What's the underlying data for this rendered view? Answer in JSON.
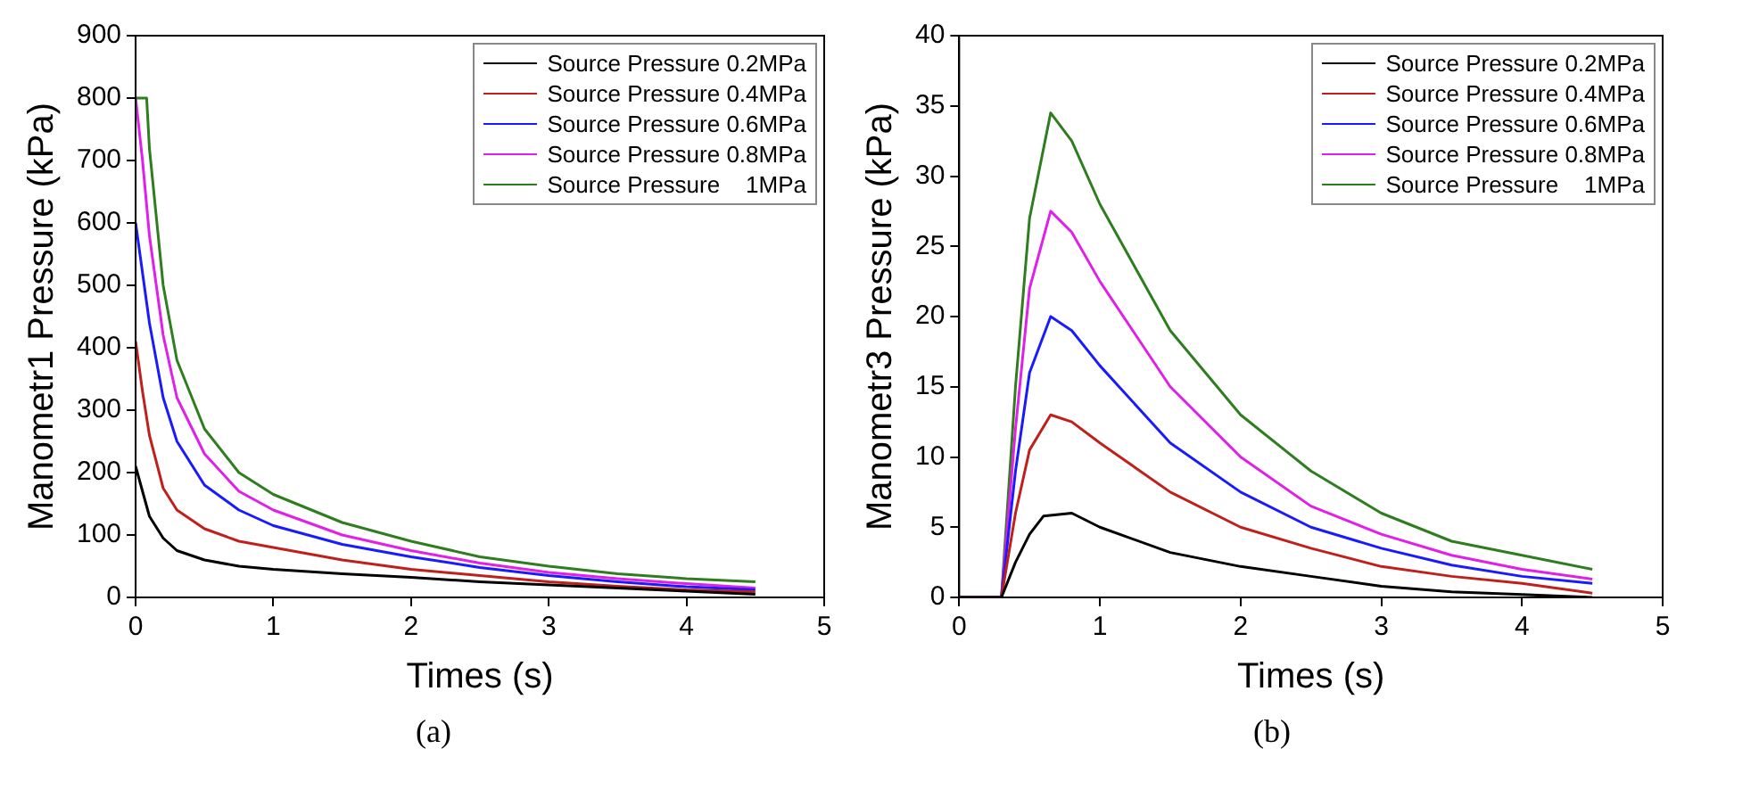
{
  "chart_data": [
    {
      "type": "line",
      "xlabel": "Times (s)",
      "ylabel": "Manometr1 Pressure (kPa)",
      "xlim": [
        0,
        5
      ],
      "xticks": [
        0,
        1,
        2,
        3,
        4,
        5
      ],
      "ylim": [
        0,
        900
      ],
      "yticks": [
        0,
        100,
        200,
        300,
        400,
        500,
        600,
        700,
        800,
        900
      ],
      "grid": false,
      "legend": "top right",
      "marker": "none",
      "line_style": "solid",
      "annotations": [
        "(a)"
      ],
      "series": [
        {
          "name": "Source Pressure 0.2MPa",
          "color": "#000000",
          "x": [
            0,
            0.1,
            0.2,
            0.3,
            0.5,
            0.75,
            1,
            1.5,
            2,
            2.5,
            3,
            3.5,
            4,
            4.5
          ],
          "values": [
            210,
            130,
            95,
            75,
            60,
            50,
            45,
            38,
            32,
            25,
            20,
            15,
            10,
            5
          ]
        },
        {
          "name": "Source Pressure 0.4MPa",
          "color": "#c0201c",
          "x": [
            0,
            0.05,
            0.1,
            0.2,
            0.3,
            0.5,
            0.75,
            1,
            1.5,
            2,
            2.5,
            3,
            3.5,
            4,
            4.5
          ],
          "values": [
            410,
            330,
            260,
            175,
            140,
            110,
            90,
            80,
            60,
            45,
            35,
            25,
            18,
            12,
            9
          ]
        },
        {
          "name": "Source Pressure 0.6MPa",
          "color": "#1a1aff",
          "x": [
            0,
            0.05,
            0.1,
            0.2,
            0.3,
            0.5,
            0.75,
            1,
            1.5,
            2,
            2.5,
            3,
            3.5,
            4,
            4.5
          ],
          "values": [
            600,
            520,
            440,
            320,
            250,
            180,
            140,
            115,
            85,
            65,
            48,
            35,
            25,
            17,
            12
          ]
        },
        {
          "name": "Source Pressure 0.8MPa",
          "color": "#e020e8",
          "x": [
            0,
            0.05,
            0.1,
            0.2,
            0.3,
            0.5,
            0.75,
            1,
            1.5,
            2,
            2.5,
            3,
            3.5,
            4,
            4.5
          ],
          "values": [
            800,
            700,
            580,
            420,
            320,
            230,
            170,
            140,
            100,
            75,
            55,
            40,
            30,
            22,
            15
          ]
        },
        {
          "name": "Source Pressure    1MPa",
          "color": "#2e7d1e",
          "x": [
            0,
            0.08,
            0.1,
            0.2,
            0.3,
            0.5,
            0.75,
            1,
            1.5,
            2,
            2.5,
            3,
            3.5,
            4,
            4.5
          ],
          "values": [
            800,
            800,
            720,
            500,
            380,
            270,
            200,
            165,
            120,
            90,
            65,
            50,
            38,
            30,
            25
          ]
        }
      ]
    },
    {
      "type": "line",
      "xlabel": "Times (s)",
      "ylabel": "Manometr3 Pressure (kPa)",
      "xlim": [
        0,
        5
      ],
      "xticks": [
        0,
        1,
        2,
        3,
        4,
        5
      ],
      "ylim": [
        0,
        40
      ],
      "yticks": [
        0,
        5,
        10,
        15,
        20,
        25,
        30,
        35,
        40
      ],
      "grid": false,
      "legend": "top right",
      "marker": "none",
      "line_style": "solid",
      "annotations": [
        "(b)"
      ],
      "series": [
        {
          "name": "Source Pressure 0.2MPa",
          "color": "#000000",
          "x": [
            0,
            0.25,
            0.3,
            0.4,
            0.5,
            0.6,
            0.8,
            1,
            1.5,
            2,
            2.5,
            3,
            3.5,
            4,
            4.5
          ],
          "values": [
            0,
            0,
            0,
            2.5,
            4.5,
            5.8,
            6,
            5,
            3.2,
            2.2,
            1.5,
            0.8,
            0.4,
            0.2,
            0
          ]
        },
        {
          "name": "Source Pressure 0.4MPa",
          "color": "#c0201c",
          "x": [
            0,
            0.25,
            0.3,
            0.4,
            0.5,
            0.65,
            0.8,
            1,
            1.5,
            2,
            2.5,
            3,
            3.5,
            4,
            4.5
          ],
          "values": [
            0,
            0,
            0,
            6,
            10.5,
            13,
            12.5,
            11,
            7.5,
            5,
            3.5,
            2.2,
            1.5,
            1,
            0.3
          ]
        },
        {
          "name": "Source Pressure 0.6MPa",
          "color": "#1a1aff",
          "x": [
            0,
            0.25,
            0.3,
            0.4,
            0.5,
            0.65,
            0.8,
            1,
            1.5,
            2,
            2.5,
            3,
            3.5,
            4,
            4.5
          ],
          "values": [
            0,
            0,
            0,
            9,
            16,
            20,
            19,
            16.5,
            11,
            7.5,
            5,
            3.5,
            2.3,
            1.5,
            1
          ]
        },
        {
          "name": "Source Pressure 0.8MPa",
          "color": "#e020e8",
          "x": [
            0,
            0.25,
            0.3,
            0.4,
            0.5,
            0.65,
            0.8,
            1,
            1.5,
            2,
            2.5,
            3,
            3.5,
            4,
            4.5
          ],
          "values": [
            0,
            0,
            0,
            12,
            22,
            27.5,
            26,
            22.5,
            15,
            10,
            6.5,
            4.5,
            3,
            2,
            1.3
          ]
        },
        {
          "name": "Source Pressure    1MPa",
          "color": "#2e7d1e",
          "x": [
            0,
            0.25,
            0.3,
            0.4,
            0.5,
            0.65,
            0.8,
            1,
            1.5,
            2,
            2.5,
            3,
            3.5,
            4,
            4.5
          ],
          "values": [
            0,
            0,
            0,
            15,
            27,
            34.5,
            32.5,
            28,
            19,
            13,
            9,
            6,
            4,
            3,
            2
          ]
        }
      ]
    }
  ]
}
